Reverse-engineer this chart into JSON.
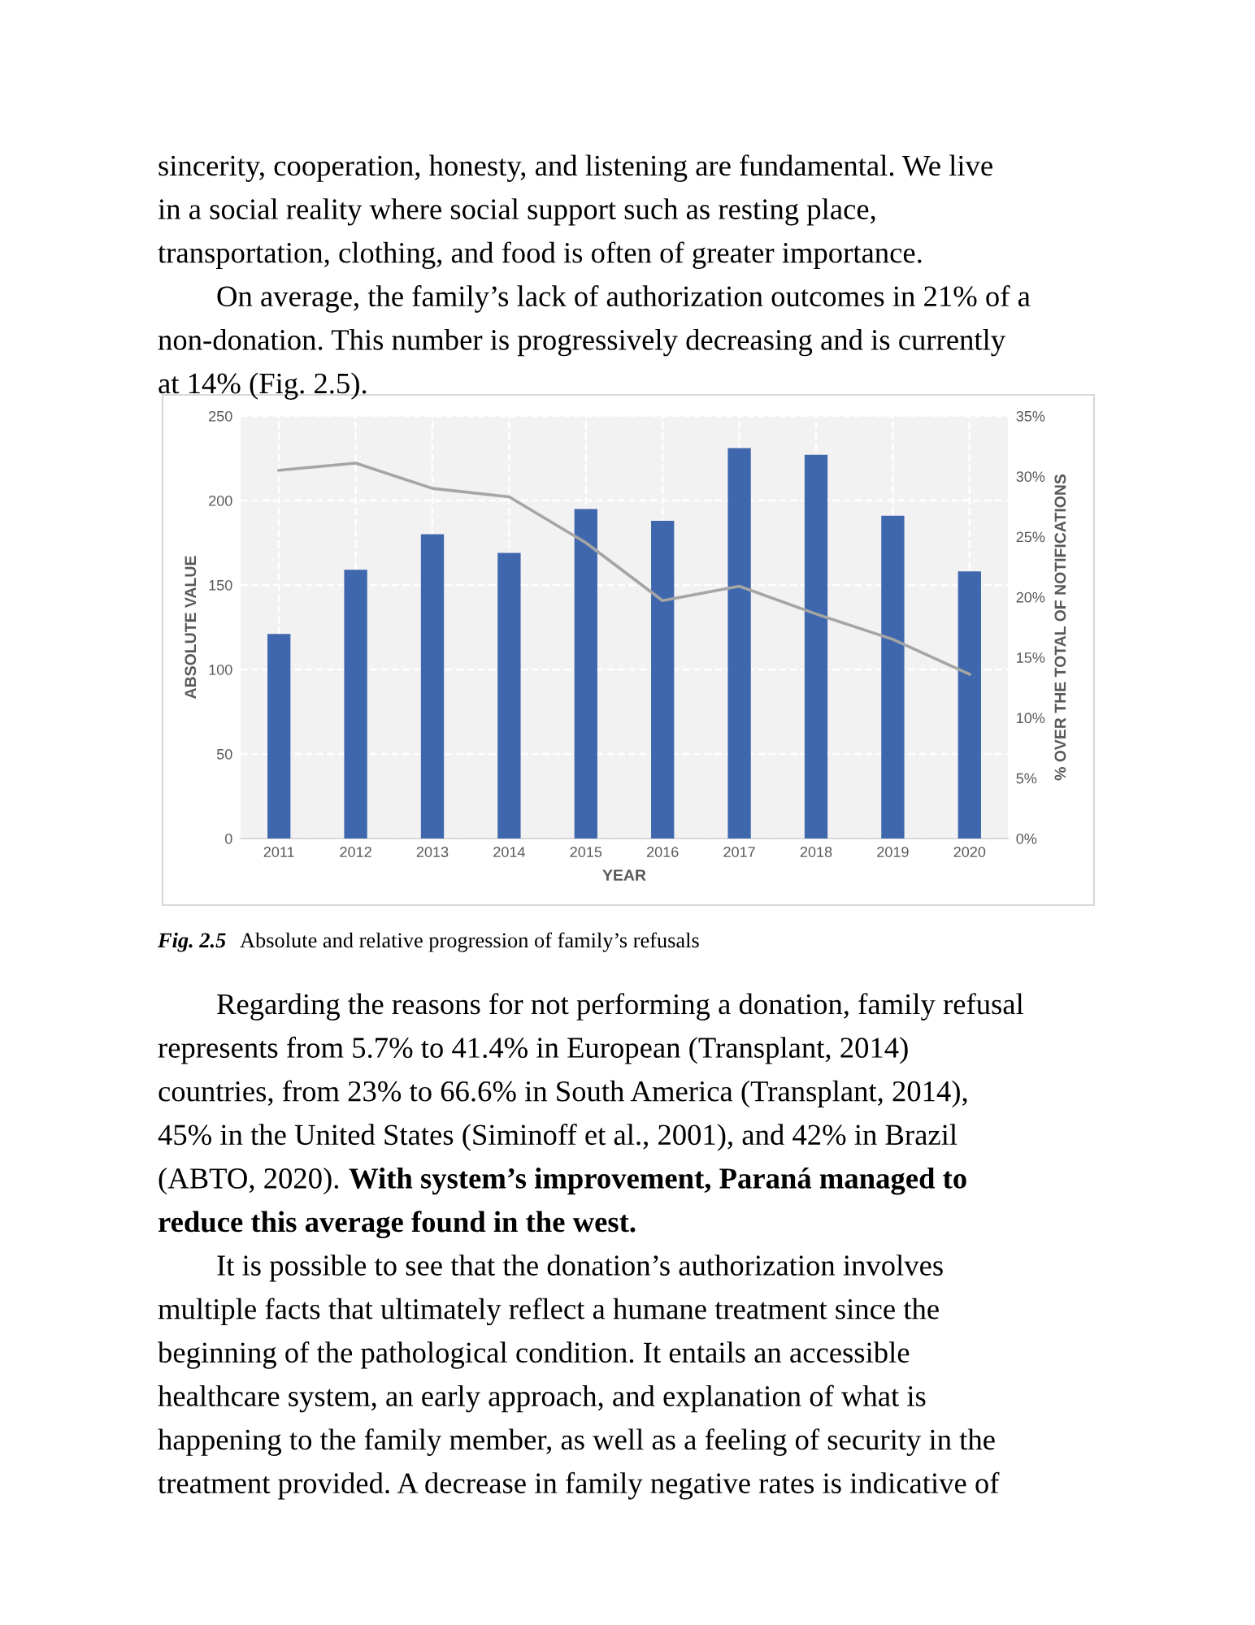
{
  "chart_data": {
    "type": "bar",
    "xlabel": "YEAR",
    "ylabel": "ABSOLUTE VALUE",
    "y2label": "% OVER THE TOTAL OF NOTIFICATIONS",
    "categories": [
      "2011",
      "2012",
      "2013",
      "2014",
      "2015",
      "2016",
      "2017",
      "2018",
      "2019",
      "2020"
    ],
    "series": [
      {
        "color": "#3f67ad",
        "values": [
          121,
          159,
          180,
          169,
          195,
          188,
          231,
          227,
          191,
          158
        ]
      },
      {
        "type": "line",
        "axis": "y2",
        "color": "#a5a5a5",
        "values": [
          30.5,
          31.1,
          29.0,
          28.3,
          24.5,
          19.7,
          20.9,
          18.6,
          16.5,
          13.6
        ]
      }
    ],
    "ylim": [
      0,
      250
    ],
    "yticks": [
      0,
      50,
      100,
      150,
      200,
      250
    ],
    "y2lim": [
      0,
      35
    ],
    "y2ticks": [
      {
        "value": 0,
        "label": "0%"
      },
      {
        "value": 5,
        "label": "5%"
      },
      {
        "value": 10,
        "label": "10%"
      },
      {
        "value": 15,
        "label": "15%"
      },
      {
        "value": 20,
        "label": "20%"
      },
      {
        "value": 25,
        "label": "25%"
      },
      {
        "value": 30,
        "label": "30%"
      },
      {
        "value": 35,
        "label": "35%"
      }
    ],
    "grid": true,
    "marker": "none",
    "line_style": "solid",
    "annotations": [
      "sincerity, cooperation, honesty, and listening are fundamental. We live\nin a social reality where social support such as resting place,\ntransportation, clothing, and food is often of greater importance.",
      "On average, the family’s lack of authorization outcomes in 21% of a\nnon-donation. This number is progressively decreasing and is currently\nat 14% (Fig. 2.5).",
      "Fig. 2.5",
      "Absolute and relative progression of family’s refusals",
      "Regarding the reasons for not performing a donation, family refusal\nrepresents from 5.7% to 41.4% in European (Transplant, 2014)\ncountries, from 23% to 66.6% in South America (Transplant, 2014),\n45% in the United States (Siminoff et al., 2001), and 42% in Brazil\n(ABTO, 2020).",
      "With system’s improvement, Paraná managed to\nreduce this average found in the west.",
      "It is possible to see that the donation’s authorization involves\nmultiple facts that ultimately reflect a humane treatment since the\nbeginning of the pathological condition. It entails an accessible\nhealthcare system, an early approach, and explanation of what is\nhappening to the family member, as well as a feeling of security in the\ntreatment provided. A decrease in family negative rates is indicative of"
    ]
  }
}
